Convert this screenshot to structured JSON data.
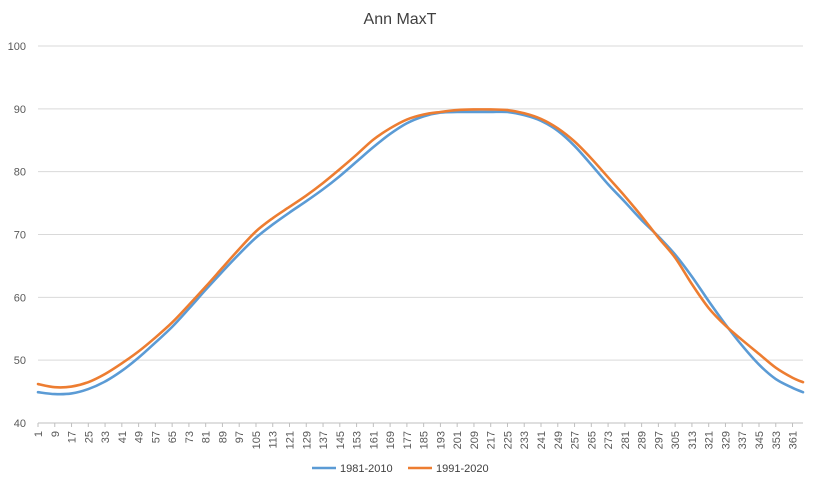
{
  "chart_data": {
    "type": "line",
    "title": "Ann MaxT",
    "xlabel": "",
    "ylabel": "",
    "xlim": [
      1,
      366
    ],
    "ylim": [
      40,
      100
    ],
    "y_ticks": [
      40,
      50,
      60,
      70,
      80,
      90,
      100
    ],
    "x_ticks": [
      1,
      9,
      17,
      25,
      33,
      41,
      49,
      57,
      65,
      73,
      81,
      89,
      97,
      105,
      113,
      121,
      129,
      137,
      145,
      153,
      161,
      169,
      177,
      185,
      193,
      201,
      209,
      217,
      225,
      233,
      241,
      249,
      257,
      265,
      273,
      281,
      289,
      297,
      305,
      313,
      321,
      329,
      337,
      345,
      353,
      361
    ],
    "grid": "horizontal",
    "legend_position": "bottom",
    "x": [
      1,
      9,
      17,
      25,
      33,
      41,
      49,
      57,
      65,
      73,
      81,
      89,
      97,
      105,
      113,
      121,
      129,
      137,
      145,
      153,
      161,
      169,
      177,
      185,
      193,
      201,
      209,
      217,
      225,
      233,
      241,
      249,
      257,
      265,
      273,
      281,
      289,
      297,
      305,
      313,
      321,
      329,
      337,
      345,
      353,
      361,
      366
    ],
    "series": [
      {
        "name": "1981-2010",
        "color": "#5B9BD5",
        "values": [
          44.9,
          44.6,
          44.7,
          45.4,
          46.6,
          48.3,
          50.4,
          52.8,
          55.3,
          58.2,
          61.2,
          64.1,
          66.9,
          69.5,
          71.6,
          73.5,
          75.3,
          77.2,
          79.3,
          81.6,
          83.9,
          86.0,
          87.7,
          88.8,
          89.4,
          89.5,
          89.5,
          89.5,
          89.5,
          89.0,
          88.1,
          86.5,
          84.1,
          81.1,
          78.0,
          75.2,
          72.3,
          69.7,
          66.8,
          63.3,
          59.4,
          55.7,
          52.3,
          49.3,
          47.0,
          45.6,
          44.9
        ]
      },
      {
        "name": "1991-2020",
        "color": "#ED7D31",
        "values": [
          46.2,
          45.7,
          45.8,
          46.5,
          47.8,
          49.5,
          51.4,
          53.6,
          56.0,
          58.8,
          61.7,
          64.7,
          67.7,
          70.5,
          72.6,
          74.4,
          76.2,
          78.2,
          80.4,
          82.7,
          85.1,
          86.9,
          88.3,
          89.1,
          89.5,
          89.8,
          89.9,
          89.9,
          89.8,
          89.3,
          88.4,
          86.9,
          84.8,
          82.1,
          79.1,
          76.1,
          72.9,
          69.5,
          66.3,
          62.1,
          58.3,
          55.5,
          53.2,
          51.0,
          48.8,
          47.2,
          46.5
        ]
      }
    ]
  }
}
